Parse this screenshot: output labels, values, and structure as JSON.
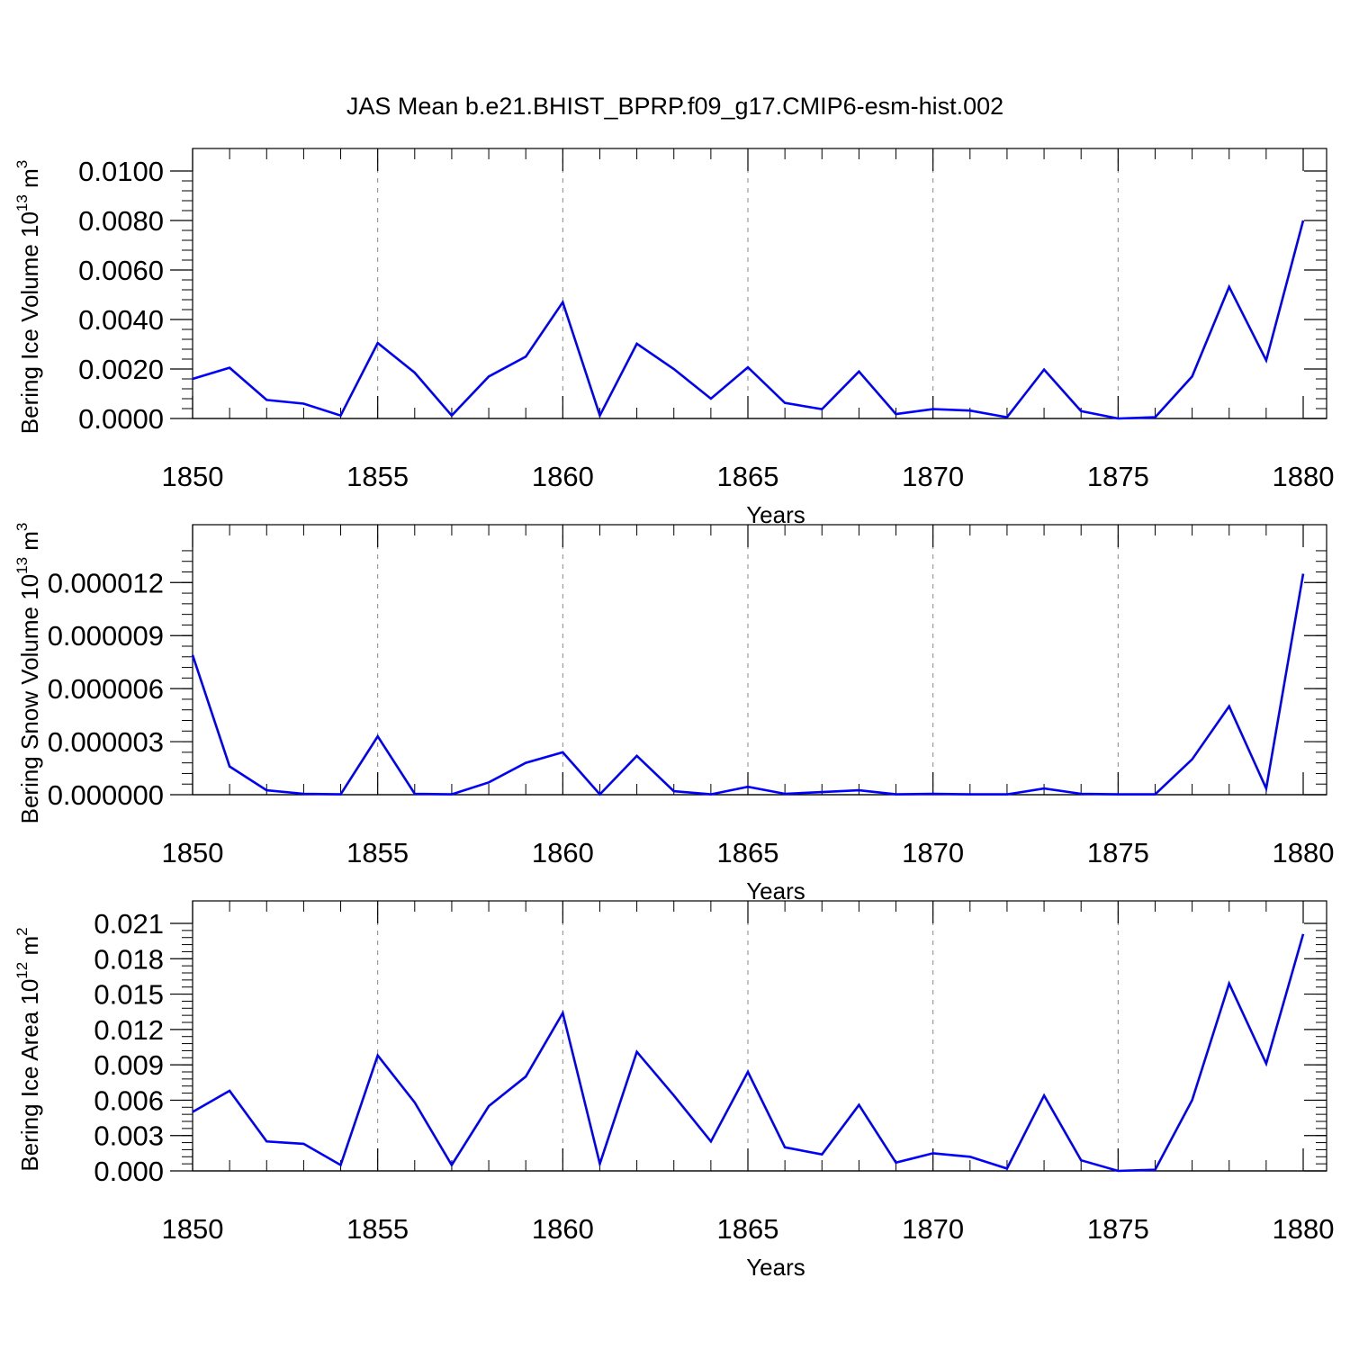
{
  "title": "JAS Mean b.e21.BHIST_BPRP.f09_g17.CMIP6-esm-hist.002",
  "colors": {
    "line": "#0000ff",
    "grid": "#888888",
    "axis": "#000000"
  },
  "chart_data": [
    {
      "type": "line",
      "ylabel": "Bering Ice Volume 10",
      "ylabel_exp": "13",
      "ylabel_unit": "m",
      "ylabel_unit_exp": "3",
      "xlabel": "Years",
      "xlim": [
        1850,
        1880
      ],
      "ylim": [
        0.0,
        0.01
      ],
      "x_ticks": [
        "1850",
        "1855",
        "1860",
        "1865",
        "1870",
        "1875",
        "1880"
      ],
      "y_ticks": [
        "0.0000",
        "0.0020",
        "0.0040",
        "0.0060",
        "0.0080",
        "0.0100"
      ],
      "grid_x": true,
      "x": [
        1850,
        1851,
        1852,
        1853,
        1854,
        1855,
        1856,
        1857,
        1858,
        1859,
        1860,
        1861,
        1862,
        1863,
        1864,
        1865,
        1866,
        1867,
        1868,
        1869,
        1870,
        1871,
        1872,
        1873,
        1874,
        1875,
        1876,
        1877,
        1878,
        1879,
        1880
      ],
      "values": [
        0.0016,
        0.00205,
        0.00075,
        0.0006,
        0.00012,
        0.00305,
        0.00185,
        0.00012,
        0.0017,
        0.0025,
        0.0047,
        0.00012,
        0.00302,
        0.002,
        0.0008,
        0.00207,
        0.00063,
        0.00038,
        0.0019,
        0.00018,
        0.00038,
        0.00032,
        5e-05,
        0.00198,
        0.0003,
        0.0,
        5e-05,
        0.0017,
        0.00532,
        0.00235,
        0.008
      ]
    },
    {
      "type": "line",
      "ylabel": "Bering Snow Volume 10",
      "ylabel_exp": "13",
      "ylabel_unit": "m",
      "ylabel_unit_exp": "3",
      "xlabel": "Years",
      "xlim": [
        1850,
        1880
      ],
      "ylim": [
        0.0,
        1.4e-05
      ],
      "x_ticks": [
        "1850",
        "1855",
        "1860",
        "1865",
        "1870",
        "1875",
        "1880"
      ],
      "y_ticks": [
        "0.000000",
        "0.000003",
        "0.000006",
        "0.000009",
        "0.000012"
      ],
      "grid_x": true,
      "x": [
        1850,
        1851,
        1852,
        1853,
        1854,
        1855,
        1856,
        1857,
        1858,
        1859,
        1860,
        1861,
        1862,
        1863,
        1864,
        1865,
        1866,
        1867,
        1868,
        1869,
        1870,
        1871,
        1872,
        1873,
        1874,
        1875,
        1876,
        1877,
        1878,
        1879,
        1880
      ],
      "values": [
        7.9e-06,
        1.6e-06,
        2.5e-07,
        5e-08,
        2e-08,
        3.3e-06,
        5e-08,
        2e-08,
        7e-07,
        1.8e-06,
        2.4e-06,
        2e-08,
        2.2e-06,
        2e-07,
        2e-08,
        4.5e-07,
        5e-08,
        1.5e-07,
        2.5e-07,
        2e-08,
        5e-08,
        2e-08,
        2e-08,
        3.5e-07,
        5e-08,
        2e-08,
        2e-08,
        2e-06,
        5e-06,
        3.5e-07,
        1.25e-05
      ]
    },
    {
      "type": "line",
      "ylabel": "Bering Ice Area 10",
      "ylabel_exp": "12",
      "ylabel_unit": "m",
      "ylabel_unit_exp": "2",
      "xlabel": "Years",
      "xlim": [
        1850,
        1880
      ],
      "ylim": [
        0.0,
        0.021
      ],
      "x_ticks": [
        "1850",
        "1855",
        "1860",
        "1865",
        "1870",
        "1875",
        "1880"
      ],
      "y_ticks": [
        "0.000",
        "0.003",
        "0.006",
        "0.009",
        "0.012",
        "0.015",
        "0.018",
        "0.021"
      ],
      "grid_x": true,
      "x": [
        1850,
        1851,
        1852,
        1853,
        1854,
        1855,
        1856,
        1857,
        1858,
        1859,
        1860,
        1861,
        1862,
        1863,
        1864,
        1865,
        1866,
        1867,
        1868,
        1869,
        1870,
        1871,
        1872,
        1873,
        1874,
        1875,
        1876,
        1877,
        1878,
        1879,
        1880
      ],
      "values": [
        0.005,
        0.0068,
        0.0025,
        0.0023,
        0.0005,
        0.0098,
        0.0058,
        0.0005,
        0.0055,
        0.008,
        0.0134,
        0.0006,
        0.0101,
        0.0064,
        0.0025,
        0.0084,
        0.002,
        0.0014,
        0.0056,
        0.0007,
        0.0015,
        0.0012,
        0.0002,
        0.0064,
        0.0009,
        0.0,
        0.0001,
        0.006,
        0.0159,
        0.0091,
        0.0201
      ]
    }
  ]
}
